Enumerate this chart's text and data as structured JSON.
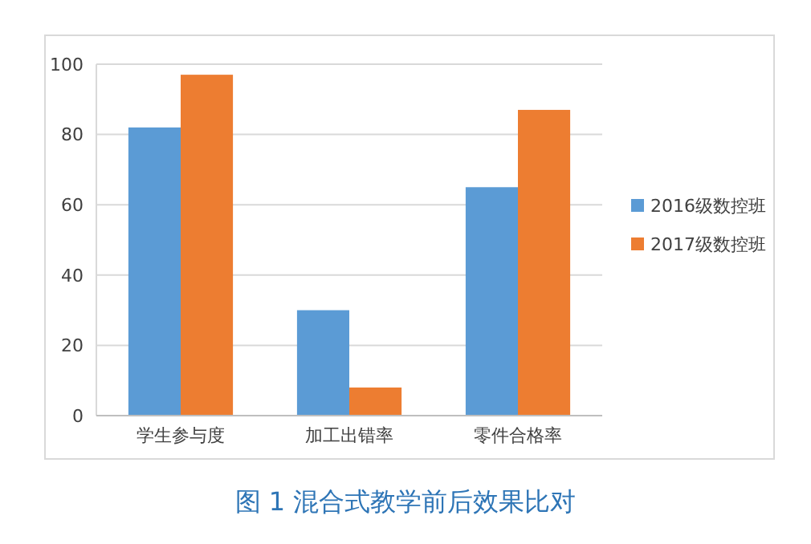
{
  "chart_data": {
    "type": "bar",
    "title": "图 1 混合式教学前后效果比对",
    "categories": [
      "学生参与度",
      "加工出错率",
      "零件合格率"
    ],
    "series": [
      {
        "name": "2016级数控班",
        "color": "#5b9bd5",
        "values": [
          82,
          30,
          65
        ]
      },
      {
        "name": "2017级数控班",
        "color": "#ed7d31",
        "values": [
          97,
          8,
          87
        ]
      }
    ],
    "ylim": [
      0,
      100
    ],
    "yticks": [
      0,
      20,
      40,
      60,
      80,
      100
    ],
    "grid": "y",
    "legend": "right"
  }
}
